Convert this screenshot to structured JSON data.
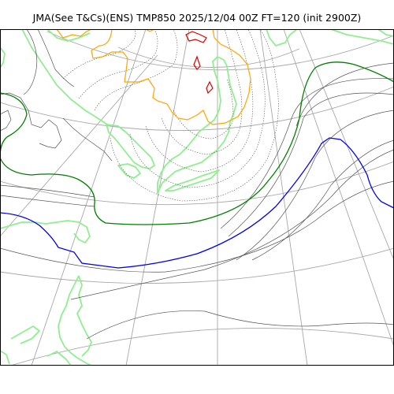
{
  "title": "JMA(See T&Cs)(ENS) TMP850 2025/12/04 00Z FT=120 (init 2900Z)",
  "colors": {
    "frame": "#000000",
    "graticule": "#a8a8a8",
    "coastline": "#90ee90",
    "isotherm_thin": "#555555",
    "isotherm_dotted": "#555555",
    "isotherm_green": "#008000",
    "isotherm_blue": "#0000ee",
    "isotherm_orange": "#ffa500",
    "isotherm_red": "#e00000"
  }
}
